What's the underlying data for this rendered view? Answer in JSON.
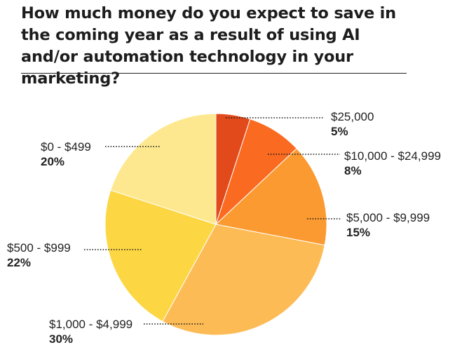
{
  "chart_data": {
    "type": "pie",
    "title": "How much money do you expect to save in the coming year as a result of using AI and/or automation technology in your marketing?",
    "slices": [
      {
        "label": "$25,000",
        "value": 5,
        "value_label": "5%",
        "color": "#e24a1b"
      },
      {
        "label": "$10,000 - $24,999",
        "value": 8,
        "value_label": "8%",
        "color": "#fa6a21"
      },
      {
        "label": "$5,000 - $9,999",
        "value": 15,
        "value_label": "15%",
        "color": "#fb9a31"
      },
      {
        "label": "$1,000 - $4,999",
        "value": 30,
        "value_label": "30%",
        "color": "#fdbb55"
      },
      {
        "label": "$500 - $999",
        "value": 22,
        "value_label": "22%",
        "color": "#fdd644"
      },
      {
        "label": "$0 - $499",
        "value": 20,
        "value_label": "20%",
        "color": "#fee88f"
      }
    ],
    "start_angle_deg": 0,
    "direction": "clockwise"
  }
}
